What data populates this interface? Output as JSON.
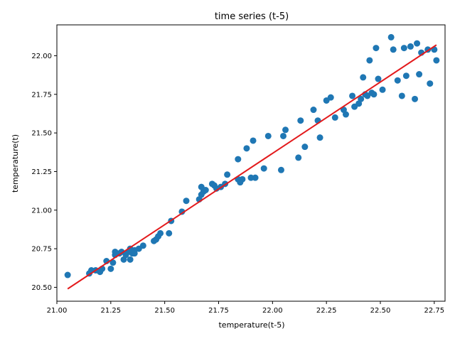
{
  "chart_data": {
    "type": "scatter",
    "title": "time series (t-5)",
    "xlabel": "temperature(t-5)",
    "ylabel": "temperature(t)",
    "xlim": [
      21.0,
      22.8
    ],
    "ylim": [
      20.41,
      22.2
    ],
    "xticks": [
      "21.00",
      "21.25",
      "21.50",
      "21.75",
      "22.00",
      "22.25",
      "22.50",
      "22.75"
    ],
    "yticks": [
      "20.50",
      "20.75",
      "21.00",
      "21.25",
      "21.50",
      "21.75",
      "22.00"
    ],
    "grid": false,
    "legend": "none",
    "colors": {
      "points": "#1f77b4",
      "fit_line": "#e31a1c"
    },
    "series": [
      {
        "type": "scatter",
        "points": [
          [
            21.05,
            20.58
          ],
          [
            21.15,
            20.59
          ],
          [
            21.16,
            20.61
          ],
          [
            21.18,
            20.61
          ],
          [
            21.2,
            20.6
          ],
          [
            21.21,
            20.62
          ],
          [
            21.23,
            20.67
          ],
          [
            21.25,
            20.62
          ],
          [
            21.26,
            20.66
          ],
          [
            21.27,
            20.71
          ],
          [
            21.27,
            20.73
          ],
          [
            21.29,
            20.72
          ],
          [
            21.3,
            20.73
          ],
          [
            21.31,
            20.68
          ],
          [
            21.32,
            20.71
          ],
          [
            21.33,
            20.73
          ],
          [
            21.34,
            20.68
          ],
          [
            21.34,
            20.75
          ],
          [
            21.35,
            20.72
          ],
          [
            21.36,
            20.74
          ],
          [
            21.36,
            20.72
          ],
          [
            21.38,
            20.75
          ],
          [
            21.4,
            20.77
          ],
          [
            21.45,
            20.8
          ],
          [
            21.46,
            20.81
          ],
          [
            21.47,
            20.83
          ],
          [
            21.48,
            20.85
          ],
          [
            21.52,
            20.85
          ],
          [
            21.53,
            20.93
          ],
          [
            21.58,
            20.99
          ],
          [
            21.6,
            21.06
          ],
          [
            21.66,
            21.07
          ],
          [
            21.67,
            21.1
          ],
          [
            21.67,
            21.15
          ],
          [
            21.68,
            21.12
          ],
          [
            21.69,
            21.13
          ],
          [
            21.72,
            21.17
          ],
          [
            21.73,
            21.16
          ],
          [
            21.74,
            21.14
          ],
          [
            21.76,
            21.15
          ],
          [
            21.78,
            21.17
          ],
          [
            21.79,
            21.23
          ],
          [
            21.84,
            21.2
          ],
          [
            21.84,
            21.33
          ],
          [
            21.85,
            21.18
          ],
          [
            21.86,
            21.2
          ],
          [
            21.88,
            21.4
          ],
          [
            21.9,
            21.21
          ],
          [
            21.91,
            21.45
          ],
          [
            21.92,
            21.21
          ],
          [
            21.96,
            21.27
          ],
          [
            21.98,
            21.48
          ],
          [
            22.04,
            21.26
          ],
          [
            22.05,
            21.48
          ],
          [
            22.06,
            21.52
          ],
          [
            22.12,
            21.34
          ],
          [
            22.13,
            21.58
          ],
          [
            22.15,
            21.41
          ],
          [
            22.19,
            21.65
          ],
          [
            22.21,
            21.58
          ],
          [
            22.22,
            21.47
          ],
          [
            22.25,
            21.71
          ],
          [
            22.27,
            21.73
          ],
          [
            22.29,
            21.6
          ],
          [
            22.33,
            21.65
          ],
          [
            22.34,
            21.62
          ],
          [
            22.37,
            21.74
          ],
          [
            22.38,
            21.67
          ],
          [
            22.4,
            21.69
          ],
          [
            22.41,
            21.72
          ],
          [
            22.42,
            21.86
          ],
          [
            22.43,
            21.75
          ],
          [
            22.44,
            21.74
          ],
          [
            22.45,
            21.97
          ],
          [
            22.46,
            21.76
          ],
          [
            22.47,
            21.75
          ],
          [
            22.48,
            22.05
          ],
          [
            22.49,
            21.85
          ],
          [
            22.51,
            21.78
          ],
          [
            22.55,
            22.12
          ],
          [
            22.56,
            22.04
          ],
          [
            22.58,
            21.84
          ],
          [
            22.6,
            21.74
          ],
          [
            22.61,
            22.05
          ],
          [
            22.62,
            21.87
          ],
          [
            22.64,
            22.06
          ],
          [
            22.66,
            21.72
          ],
          [
            22.67,
            22.08
          ],
          [
            22.68,
            21.88
          ],
          [
            22.69,
            22.02
          ],
          [
            22.72,
            22.04
          ],
          [
            22.73,
            21.82
          ],
          [
            22.75,
            22.04
          ],
          [
            22.76,
            21.97
          ]
        ]
      },
      {
        "type": "line",
        "x": [
          21.05,
          22.76
        ],
        "y": [
          20.49,
          22.07
        ]
      }
    ]
  }
}
